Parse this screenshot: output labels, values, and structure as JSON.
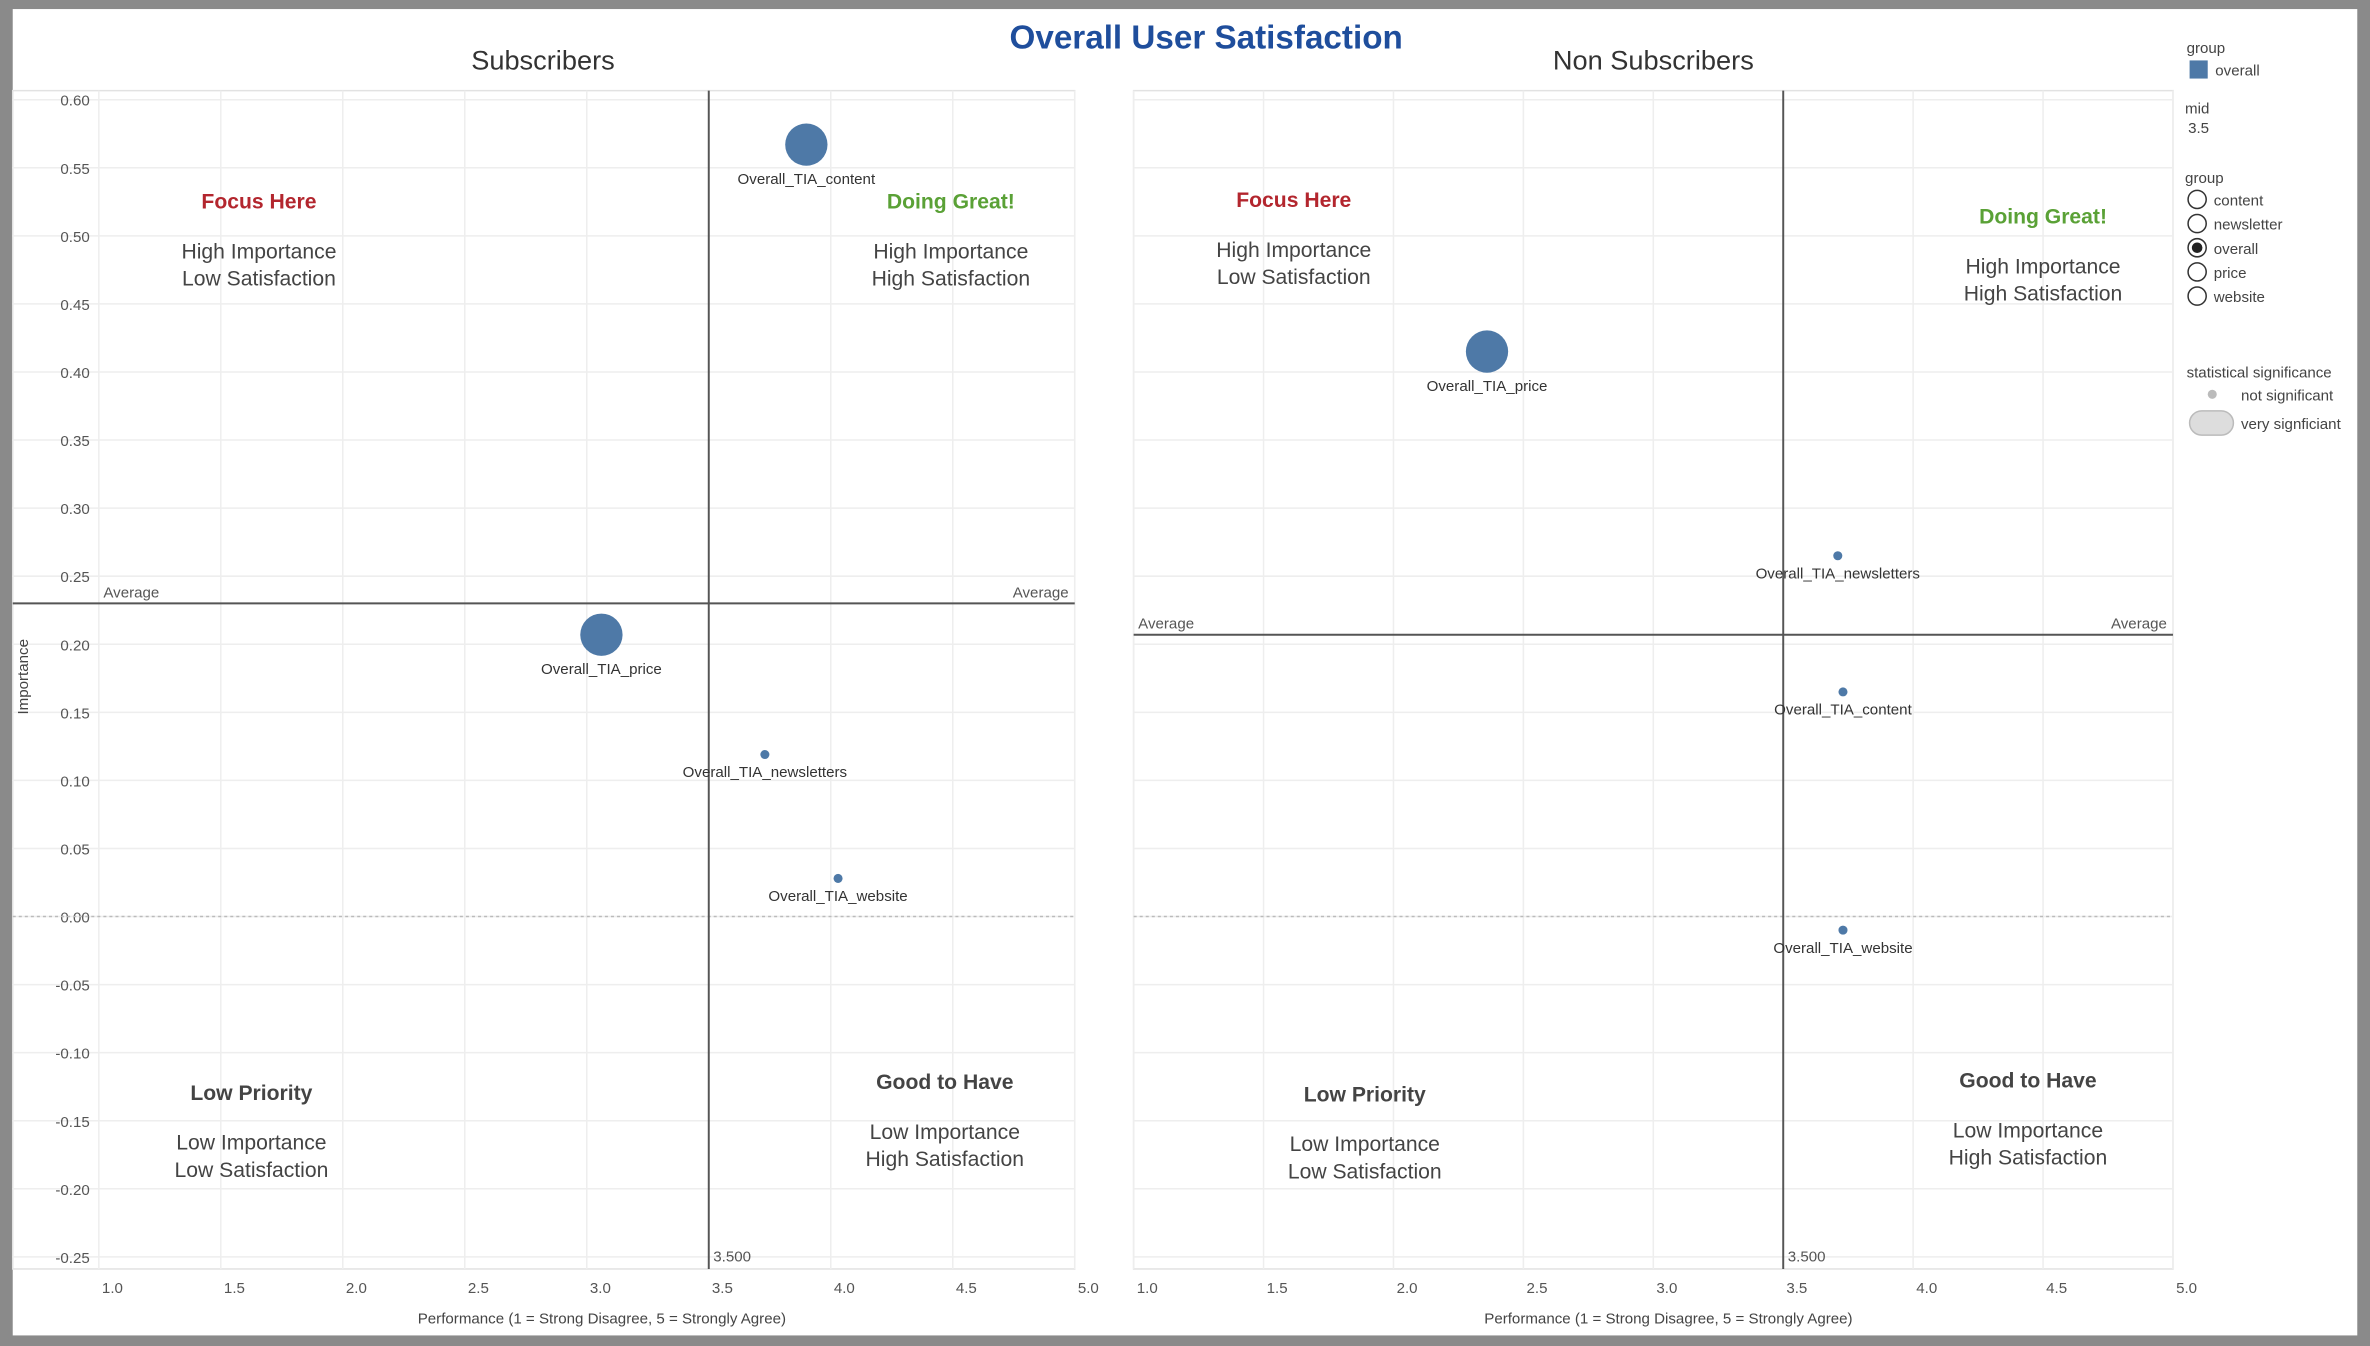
{
  "chart_data": {
    "type": "scatter",
    "title": "Overall User Satisfaction",
    "title_color": "#1f4e9c",
    "point_color": "#4e79a7",
    "xlabel": "Performance (1 = Strong Disagree, 5 = Strongly Agree)",
    "ylabel": "Importance",
    "xlim": [
      1.0,
      5.0
    ],
    "ylim": [
      -0.25,
      0.6
    ],
    "x_ticks": [
      "1.0",
      "1.5",
      "2.0",
      "2.5",
      "3.0",
      "3.5",
      "4.0",
      "4.5",
      "5.0"
    ],
    "y_ticks": [
      "0.60",
      "0.55",
      "0.50",
      "0.45",
      "0.40",
      "0.35",
      "0.30",
      "0.25",
      "0.20",
      "0.15",
      "0.10",
      "0.05",
      "0.00",
      "-0.05",
      "-0.10",
      "-0.15",
      "-0.20",
      "-0.25"
    ],
    "grid": true,
    "mid_label": "3.500",
    "average_label": "Average",
    "quadrants": {
      "focus": {
        "title": "Focus Here",
        "line1": "High Importance",
        "line2": "Low Satisfaction",
        "color": "#b3262e"
      },
      "great": {
        "title": "Doing Great!",
        "line1": "High Importance",
        "line2": "High Satisfaction",
        "color": "#5aa136"
      },
      "low": {
        "title": "Low Priority",
        "line1": "Low Importance",
        "line2": "Low Satisfaction",
        "color": "#444444"
      },
      "good": {
        "title": "Good to Have",
        "line1": "Low Importance",
        "line2": "High Satisfaction",
        "color": "#444444"
      }
    },
    "panels": [
      {
        "title": "Subscribers",
        "average": 0.23,
        "points": [
          {
            "label": "Overall_TIA_content",
            "x": 3.9,
            "y": 0.567,
            "significance": "very significant"
          },
          {
            "label": "Overall_TIA_price",
            "x": 3.06,
            "y": 0.207,
            "significance": "very significant"
          },
          {
            "label": "Overall_TIA_newsletters",
            "x": 3.73,
            "y": 0.119,
            "significance": "not significant"
          },
          {
            "label": "Overall_TIA_website",
            "x": 4.03,
            "y": 0.028,
            "significance": "not significant"
          }
        ]
      },
      {
        "title": "Non Subscribers",
        "average": 0.207,
        "points": [
          {
            "label": "Overall_TIA_price",
            "x": 2.36,
            "y": 0.415,
            "significance": "very significant"
          },
          {
            "label": "Overall_TIA_newsletters",
            "x": 3.71,
            "y": 0.265,
            "significance": "not significant"
          },
          {
            "label": "Overall_TIA_content",
            "x": 3.73,
            "y": 0.165,
            "significance": "not significant"
          },
          {
            "label": "Overall_TIA_website",
            "x": 3.73,
            "y": -0.01,
            "significance": "not significant"
          }
        ]
      }
    ]
  },
  "legend": {
    "color_title": "group",
    "color_item": "overall",
    "mid_title": "mid",
    "mid_value": "3.5",
    "group_title": "group",
    "group_options": [
      "content",
      "newsletter",
      "overall",
      "price",
      "website"
    ],
    "group_selected": "overall",
    "size_title": "statistical significance",
    "size_items": [
      "not significant",
      "very signficiant"
    ]
  }
}
